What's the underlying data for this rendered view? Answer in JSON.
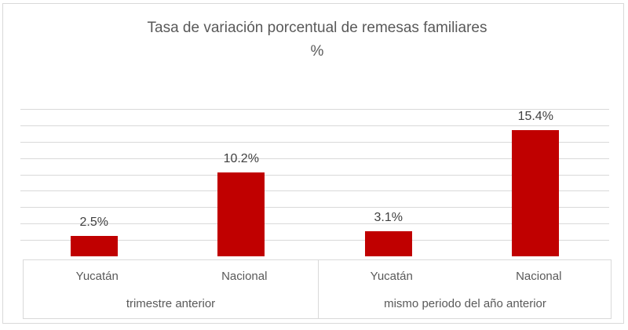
{
  "colors": {
    "bar": "#c00000",
    "gridline": "#d9d9d9",
    "frame_border": "#d9d9d9",
    "title_text": "#595959",
    "axis_text": "#595959",
    "data_label_text": "#404040"
  },
  "chart_data": {
    "type": "bar",
    "title": "Tasa de variación porcentual de remesas familiares %",
    "title_lines": [
      "Tasa de variación porcentual de remesas familiares",
      "%"
    ],
    "bar_color": "#c00000",
    "ylim": [
      0,
      18
    ],
    "ytick_step": 2,
    "grid": true,
    "y_axis_tick_labels_visible": false,
    "legend": "none",
    "xlabel": "",
    "ylabel": "",
    "groups": [
      {
        "label": "trimestre anterior",
        "categories": [
          "Yucatán",
          "Nacional"
        ],
        "values": [
          2.5,
          10.2
        ],
        "data_labels": [
          "2.5%",
          "10.2%"
        ]
      },
      {
        "label": "mismo periodo del año anterior",
        "categories": [
          "Yucatán",
          "Nacional"
        ],
        "values": [
          3.1,
          15.4
        ],
        "data_labels": [
          "3.1%",
          "15.4%"
        ]
      }
    ]
  }
}
